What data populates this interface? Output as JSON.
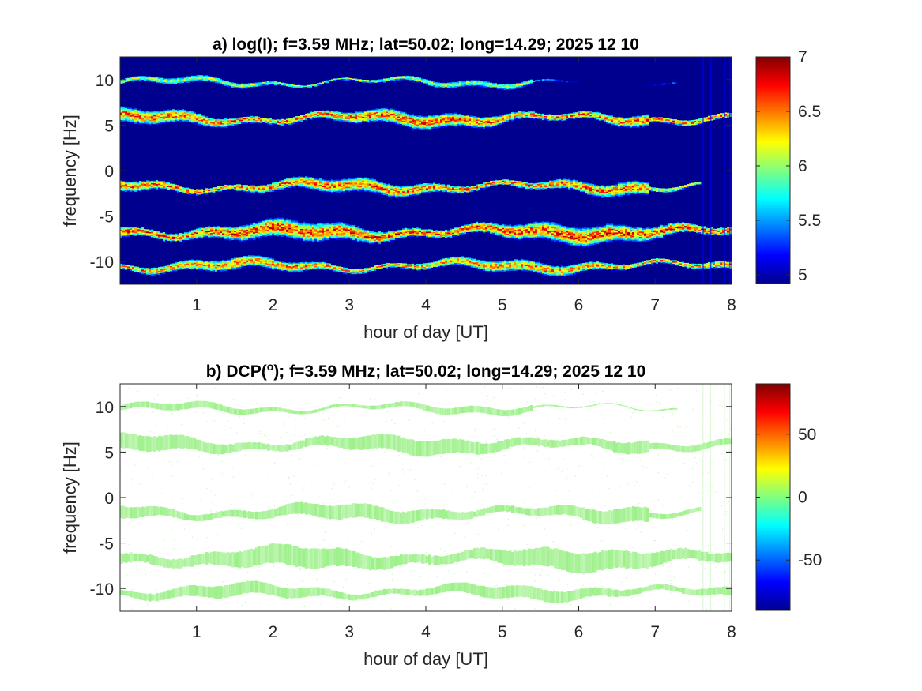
{
  "chart_data": [
    {
      "type": "heatmap",
      "panel": "a",
      "title": "a) log(I); f=3.59 MHz;  lat=50.02; long=14.29; 2025 12 10",
      "xlabel": "hour of day [UT]",
      "ylabel": "frequency [Hz]",
      "xlim": [
        0,
        8
      ],
      "ylim": [
        -12.5,
        12.5
      ],
      "xticks": [
        1,
        2,
        3,
        4,
        5,
        6,
        7,
        8
      ],
      "yticks": [
        10,
        5,
        0,
        -5,
        -10
      ],
      "colorbar": {
        "colormap": "jet",
        "range": [
          4.92,
          7.0
        ],
        "ticks": [
          "7",
          "6.5",
          "6",
          "5.5",
          "5"
        ],
        "tick_values": [
          7,
          6.5,
          6,
          5.5,
          5
        ]
      },
      "background_value": 4.95,
      "bands": [
        {
          "center_hz": 9.8,
          "width_hz": 0.6,
          "peak": 6.3,
          "end_hour": 7.3,
          "wavy_after_hour": 5.4
        },
        {
          "center_hz": 5.8,
          "width_hz": 1.4,
          "peak": 6.9,
          "end_hour": 8.0,
          "flat_after_hour": 6.9
        },
        {
          "center_hz": -1.7,
          "width_hz": 1.3,
          "peak": 6.9,
          "end_hour": 7.6,
          "wavy_after_hour": 6.9
        },
        {
          "center_hz": -6.7,
          "width_hz": 1.8,
          "peak": 7.0,
          "end_hour": 8.0
        },
        {
          "center_hz": -10.4,
          "width_hz": 1.1,
          "peak": 6.8,
          "end_hour": 8.0
        }
      ]
    },
    {
      "type": "heatmap",
      "panel": "b",
      "title_prefix": "b) DCP(",
      "title_super": "o",
      "title_suffix": "); f=3.59 MHz;  lat=50.02; long=14.29; 2025 12 10",
      "xlabel": "hour of day [UT]",
      "ylabel": "frequency [Hz]",
      "xlim": [
        0,
        8
      ],
      "ylim": [
        -12.5,
        12.5
      ],
      "xticks": [
        1,
        2,
        3,
        4,
        5,
        6,
        7,
        8
      ],
      "yticks": [
        10,
        5,
        0,
        -5,
        -10
      ],
      "colorbar": {
        "colormap": "jet",
        "range": [
          -90,
          90
        ],
        "ticks": [
          "50",
          "0",
          "-50"
        ],
        "tick_values": [
          50,
          0,
          -50
        ]
      },
      "band_value": 5,
      "band_color": "#9df08a"
    }
  ],
  "colors": {
    "axis": "#262626",
    "background_a": "#00008f",
    "band_b": "#9df08a"
  }
}
